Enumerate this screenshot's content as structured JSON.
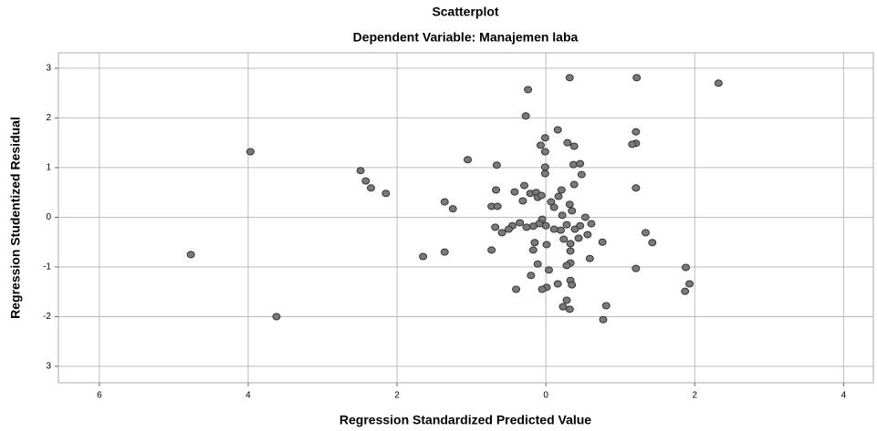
{
  "chart_data": {
    "type": "scatter",
    "title": "Scatterplot",
    "subtitle": "Dependent Variable: Manajemen laba",
    "x_label": "Regression Standardized Predicted Value",
    "y_label": "Regression Studentized Residual",
    "xlim": [
      -6.55,
      4.4
    ],
    "ylim": [
      -3.33,
      3.31
    ],
    "xticks": [
      {
        "value": -6,
        "label": "6"
      },
      {
        "value": -4,
        "label": "4"
      },
      {
        "value": -2,
        "label": "2"
      },
      0,
      2,
      4
    ],
    "yticks": [
      {
        "value": -3,
        "label": "3"
      },
      -2,
      -1,
      0,
      1,
      2,
      3
    ],
    "grid": true,
    "color": "#7a7a7a",
    "x": [
      -3.97,
      -4.77,
      -3.62,
      -2.49,
      -2.42,
      -2.35,
      -2.15,
      -1.65,
      -1.36,
      -1.36,
      -1.25,
      -1.05,
      -0.66,
      -0.67,
      -0.73,
      -0.65,
      -0.68,
      -0.73,
      -0.24,
      -0.27,
      0.32,
      1.22,
      2.32,
      1.21,
      1.21,
      1.16,
      1.21,
      1.21,
      1.34,
      1.43,
      1.88,
      1.93,
      1.87,
      0.16,
      -0.01,
      -0.07,
      -0.01,
      0.29,
      0.38,
      0.37,
      0.46,
      0.48,
      -0.01,
      -0.01,
      0.38,
      -0.29,
      -0.42,
      -0.21,
      -0.13,
      -0.11,
      -0.06,
      0.07,
      0.17,
      0.21,
      0.11,
      -0.31,
      0.22,
      0.32,
      0.35,
      0.53,
      0.46,
      0.61,
      0.39,
      0.28,
      0.2,
      0.11,
      0,
      -0.05,
      -0.09,
      -0.17,
      -0.26,
      -0.35,
      -0.45,
      -0.5,
      -0.59,
      -0.15,
      -0.17,
      0.01,
      0.24,
      0.33,
      0.44,
      0.56,
      0.76,
      0.33,
      0.59,
      0.33,
      -0.11,
      0.28,
      0.04,
      -0.2,
      0.33,
      0.35,
      0.16,
      0.01,
      -0.05,
      -0.4,
      0.28,
      0.23,
      0.32,
      0.81,
      0.77
    ],
    "values": [
      1.32,
      -0.75,
      -2.0,
      0.94,
      0.73,
      0.59,
      0.48,
      -0.79,
      -0.7,
      0.31,
      0.17,
      1.16,
      1.05,
      0.55,
      0.22,
      0.22,
      -0.2,
      -0.66,
      2.57,
      2.04,
      2.81,
      2.81,
      2.7,
      1.72,
      1.49,
      1.47,
      0.59,
      -1.03,
      -0.31,
      -0.51,
      -1.01,
      -1.34,
      -1.49,
      1.76,
      1.6,
      1.45,
      1.32,
      1.5,
      1.43,
      1.06,
      1.08,
      0.86,
      1.01,
      0.88,
      0.66,
      0.64,
      0.51,
      0.48,
      0.5,
      0.4,
      0.44,
      0.31,
      0.42,
      0.55,
      0.2,
      0.33,
      0.04,
      0.26,
      0.13,
      0,
      -0.17,
      -0.13,
      -0.24,
      -0.15,
      -0.26,
      -0.24,
      -0.17,
      -0.04,
      -0.13,
      -0.18,
      -0.2,
      -0.11,
      -0.17,
      -0.24,
      -0.31,
      -0.51,
      -0.66,
      -0.55,
      -0.44,
      -0.53,
      -0.42,
      -0.35,
      -0.5,
      -0.68,
      -0.83,
      -0.92,
      -0.94,
      -0.97,
      -1.06,
      -1.17,
      -1.27,
      -1.36,
      -1.34,
      -1.41,
      -1.45,
      -1.45,
      -1.67,
      -1.8,
      -1.85,
      -1.78,
      -2.06
    ]
  }
}
